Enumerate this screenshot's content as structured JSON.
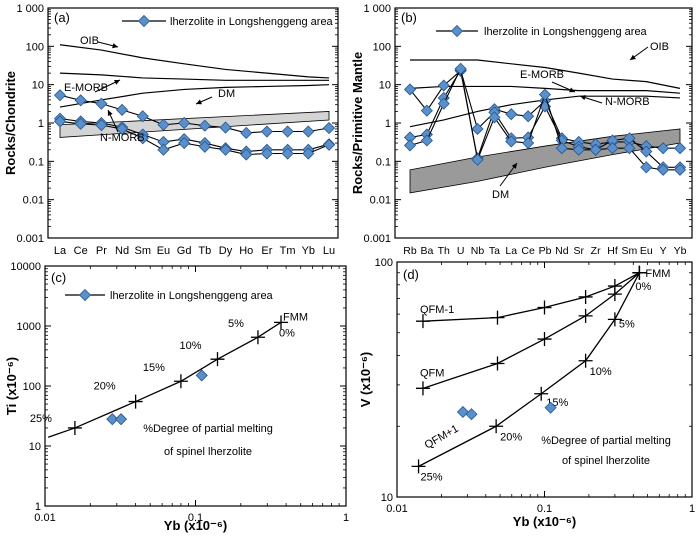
{
  "chart_data": [
    {
      "id": "a",
      "type": "line",
      "panel_label": "(a)",
      "ylabel": "Rocks/Chondrite",
      "y_scale": "log",
      "ylim": [
        0.001,
        1000
      ],
      "y_ticks": [
        "0.001",
        "0.01",
        "0.1",
        "1",
        "10",
        "100",
        "1 000"
      ],
      "categories": [
        "La",
        "Ce",
        "Pr",
        "Nd",
        "Sm",
        "Eu",
        "Gd",
        "Tb",
        "Dy",
        "Ho",
        "Er",
        "Tm",
        "Yb",
        "Lu"
      ],
      "legend": "lherzolite in Longshenggeng area",
      "reference_lines": [
        {
          "name": "OIB",
          "x": [
            0,
            2,
            4,
            6,
            8,
            10,
            12,
            13
          ],
          "values": [
            110,
            80,
            50,
            35,
            25,
            20,
            16,
            15
          ]
        },
        {
          "name": "E-MORB",
          "x": [
            0,
            2,
            4,
            6,
            8,
            10,
            12,
            13
          ],
          "values": [
            20,
            18,
            15,
            14,
            13,
            13,
            13,
            13
          ]
        },
        {
          "name": "N-MORB",
          "x": [
            0,
            2,
            4,
            6,
            8,
            10,
            12,
            13
          ],
          "values": [
            2.6,
            4,
            6,
            7.5,
            8.5,
            9,
            9.5,
            10
          ]
        }
      ],
      "band": {
        "name": "DM",
        "x": [
          0,
          13
        ],
        "upper": [
          0.9,
          2.0
        ],
        "lower": [
          0.42,
          1.2
        ]
      },
      "series": [
        {
          "values": [
            5.3,
            3.9,
            3.2,
            2.2,
            1.5,
            0.9,
            1.0,
            0.85,
            0.76,
            0.55,
            0.6,
            0.6,
            0.6,
            0.74
          ]
        },
        {
          "values": [
            1.3,
            1.1,
            1.0,
            0.78,
            0.5,
            0.32,
            0.38,
            0.3,
            0.22,
            0.18,
            0.2,
            0.2,
            0.2,
            0.28
          ]
        },
        {
          "values": [
            1.1,
            0.95,
            0.88,
            0.7,
            0.4,
            0.2,
            0.3,
            0.24,
            0.2,
            0.15,
            0.16,
            0.16,
            0.16,
            0.27
          ]
        }
      ]
    },
    {
      "id": "b",
      "type": "line",
      "panel_label": "(b)",
      "ylabel": "Rocks/Primitive Mantle",
      "y_scale": "log",
      "ylim": [
        0.001,
        1000
      ],
      "y_ticks": [
        "0.001",
        "0.01",
        "0.1",
        "1",
        "10",
        "100",
        "1 000"
      ],
      "categories": [
        "Rb",
        "Ba",
        "Th",
        "U",
        "Nb",
        "Ta",
        "La",
        "Ce",
        "Pb",
        "Nd",
        "Sr",
        "Zr",
        "Hf",
        "Sm",
        "Eu",
        "Y",
        "Yb"
      ],
      "legend": "lherzolite in Longshenggeng area",
      "reference_lines": [
        {
          "name": "OIB",
          "x": [
            0,
            2,
            4,
            6,
            8,
            10,
            12,
            14,
            16
          ],
          "values": [
            44,
            44,
            44,
            35,
            28,
            20,
            14,
            12,
            8
          ]
        },
        {
          "name": "E-MORB",
          "x": [
            0,
            2,
            4,
            6,
            8,
            10,
            12,
            14,
            16
          ],
          "values": [
            8,
            9,
            9,
            9,
            8,
            7,
            7,
            7,
            6
          ]
        },
        {
          "name": "N-MORB",
          "x": [
            0,
            2,
            4,
            6,
            8,
            10,
            12,
            14,
            16
          ],
          "values": [
            0.8,
            1.2,
            2,
            3,
            4,
            5,
            5,
            5,
            4.5
          ]
        }
      ],
      "band": {
        "name": "DM",
        "x": [
          0,
          4,
          8,
          12,
          16
        ],
        "upper": [
          0.06,
          0.13,
          0.25,
          0.45,
          0.7
        ],
        "lower": [
          0.015,
          0.03,
          0.07,
          0.15,
          0.3
        ]
      },
      "series": [
        {
          "values": [
            7.5,
            2.1,
            9.5,
            23,
            0.12,
            2.3,
            1.7,
            1.5,
            3.8,
            0.4,
            0.32,
            0.28,
            0.32,
            0.32,
            0.25,
            0.22,
            0.22
          ]
        },
        {
          "values": [
            0.42,
            0.5,
            4.5,
            24,
            0.7,
            1.9,
            0.4,
            0.42,
            2.7,
            0.35,
            0.24,
            0.2,
            0.35,
            0.4,
            0.18,
            0.07,
            0.07
          ]
        },
        {
          "values": [
            0.26,
            0.35,
            3.2,
            26,
            0.11,
            1.4,
            0.33,
            0.3,
            5.5,
            0.22,
            0.2,
            0.2,
            0.22,
            0.22,
            0.07,
            0.06,
            0.06
          ]
        }
      ]
    },
    {
      "id": "c",
      "type": "scatter",
      "panel_label": "(c)",
      "ylabel": "Ti (x10⁻⁶)",
      "xlabel": "Yb (x10⁻⁶)",
      "x_scale": "log",
      "y_scale": "log",
      "xlim": [
        0.01,
        1
      ],
      "ylim": [
        1,
        10000
      ],
      "x_ticks": [
        "0.01",
        "0.1",
        "1"
      ],
      "y_ticks": [
        "1",
        "10",
        "100",
        "1000",
        "10000"
      ],
      "legend": "lherzolite in Longshenggeng area",
      "note": [
        "%Degree of partial melting",
        "of spinel lherzolite"
      ],
      "melting_curve": {
        "x": [
          0.0158,
          0.04,
          0.08,
          0.14,
          0.26,
          0.37
        ],
        "y": [
          20,
          55,
          120,
          280,
          650,
          1150
        ],
        "labels": [
          "25%",
          "20%",
          "15%",
          "10%",
          "5%",
          "0%"
        ],
        "endpoint": "FMM"
      },
      "series": [
        {
          "x": [
            0.028,
            0.032,
            0.11
          ],
          "y": [
            28,
            28,
            150
          ]
        }
      ]
    },
    {
      "id": "d",
      "type": "scatter",
      "panel_label": "(d)",
      "ylabel": "V (x10⁻⁶)",
      "xlabel": "Yb (x10⁻⁶)",
      "x_scale": "log",
      "y_scale": "log",
      "xlim": [
        0.01,
        1
      ],
      "ylim": [
        10,
        100
      ],
      "x_ticks": [
        "0.01",
        "0.1",
        "1"
      ],
      "y_ticks": [
        "10",
        "100"
      ],
      "note": [
        "%Degree of partial melting",
        "of spinel lherzolite"
      ],
      "melting_curves": [
        {
          "name": "QFM-1",
          "x": [
            0.015,
            0.048,
            0.1,
            0.19,
            0.3,
            0.44
          ],
          "y": [
            56,
            58,
            64,
            71,
            79,
            90
          ]
        },
        {
          "name": "QFM",
          "x": [
            0.015,
            0.048,
            0.1,
            0.19,
            0.3,
            0.44
          ],
          "y": [
            29,
            37,
            47,
            59,
            73,
            90
          ]
        },
        {
          "name": "QFM+1",
          "x": [
            0.014,
            0.047,
            0.095,
            0.19,
            0.3,
            0.44
          ],
          "y": [
            13.5,
            20,
            27.5,
            38,
            57,
            90
          ]
        }
      ],
      "melting_labels": [
        "25%",
        "20%",
        "15%",
        "10%",
        "5%",
        "0%"
      ],
      "endpoint": "FMM",
      "series": [
        {
          "x": [
            0.028,
            0.032,
            0.11
          ],
          "y": [
            23,
            22.5,
            24
          ]
        }
      ]
    }
  ]
}
